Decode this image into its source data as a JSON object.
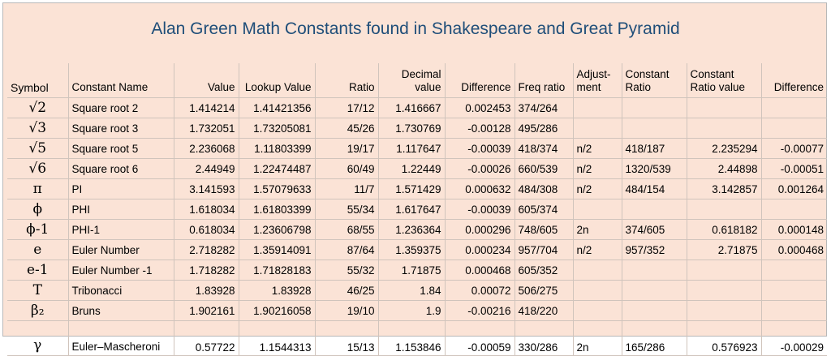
{
  "title": "Alan Green Math Constants found in Shakespeare and Great Pyramid",
  "columns": [
    "Symbol",
    "Constant Name",
    "Value",
    "Lookup Value",
    "Ratio",
    "Decimal value",
    "Difference",
    "Freq ratio",
    "Adjust-ment",
    "Constant Ratio",
    "Constant Ratio value",
    "Difference"
  ],
  "rows": [
    [
      "√2",
      "Square root 2",
      "1.414214",
      "1.41421356",
      "17/12",
      "1.416667",
      "0.002453",
      "374/264",
      "",
      "",
      "",
      ""
    ],
    [
      "√3",
      "Square root 3",
      "1.732051",
      "1.73205081",
      "45/26",
      "1.730769",
      "-0.00128",
      "495/286",
      "",
      "",
      "",
      ""
    ],
    [
      "√5",
      "Square root 5",
      "2.236068",
      "1.11803399",
      "19/17",
      "1.117647",
      "-0.00039",
      "418/374",
      "n/2",
      "418/187",
      "2.235294",
      "-0.00077"
    ],
    [
      "√6",
      "Square root 6",
      "2.44949",
      "1.22474487",
      "60/49",
      "1.22449",
      "-0.00026",
      "660/539",
      "n/2",
      "1320/539",
      "2.44898",
      "-0.00051"
    ],
    [
      "π",
      "PI",
      "3.141593",
      "1.57079633",
      "11/7",
      "1.571429",
      "0.000632",
      "484/308",
      "n/2",
      "484/154",
      "3.142857",
      "0.001264"
    ],
    [
      "ϕ",
      "PHI",
      "1.618034",
      "1.61803399",
      "55/34",
      "1.617647",
      "-0.00039",
      "605/374",
      "",
      "",
      "",
      ""
    ],
    [
      "ϕ-1",
      "PHI-1",
      "0.618034",
      "1.23606798",
      "68/55",
      "1.236364",
      "0.000296",
      "748/605",
      "2n",
      "374/605",
      "0.618182",
      "0.000148"
    ],
    [
      "e",
      "Euler Number",
      "2.718282",
      "1.35914091",
      "87/64",
      "1.359375",
      "0.000234",
      "957/704",
      "n/2",
      "957/352",
      "2.71875",
      "0.000468"
    ],
    [
      "e-1",
      "Euler Number -1",
      "1.718282",
      "1.71828183",
      "55/32",
      "1.71875",
      "0.000468",
      "605/352",
      "",
      "",
      "",
      ""
    ],
    [
      "T",
      "Tribonacci",
      "1.83928",
      "1.83928",
      "46/25",
      "1.84",
      "0.00072",
      "506/275",
      "",
      "",
      "",
      ""
    ],
    [
      "β₂",
      "Bruns",
      "1.902161",
      "1.90216058",
      "19/10",
      "1.9",
      "-0.00216",
      "418/220",
      "",
      "",
      "",
      ""
    ],
    [
      "γ",
      "Euler–Mascheroni",
      "0.57722",
      "1.1544313",
      "15/13",
      "1.153846",
      "-0.00059",
      "330/286",
      "2n",
      "165/286",
      "0.576923",
      "-0.00029"
    ]
  ]
}
